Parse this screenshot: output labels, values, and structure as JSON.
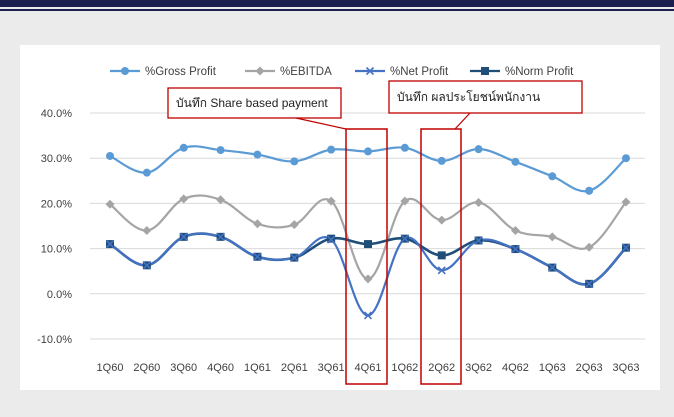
{
  "colors": {
    "top_bar": "#1a1f4e",
    "gross": "#5b9bd5",
    "ebitda": "#a5a5a5",
    "net": "#4472c4",
    "norm": "#1f4e79",
    "callout": "#c00000"
  },
  "callouts": [
    {
      "text": "บันทึก Share based payment"
    },
    {
      "text": "บันทึก ผลประโยชน์พนักงาน"
    }
  ],
  "chart_data": {
    "type": "line",
    "categories": [
      "1Q60",
      "2Q60",
      "3Q60",
      "4Q60",
      "1Q61",
      "2Q61",
      "3Q61",
      "4Q61",
      "1Q62",
      "2Q62",
      "3Q62",
      "4Q62",
      "1Q63",
      "2Q63",
      "3Q63"
    ],
    "ylim": [
      -10,
      40
    ],
    "yticks": [
      "-10.0%",
      "0.0%",
      "10.0%",
      "20.0%",
      "30.0%",
      "40.0%"
    ],
    "grid": true,
    "legend_position": "top",
    "series": [
      {
        "name": "%Gross Profit",
        "marker": "circle",
        "values": [
          30.5,
          26.8,
          32.3,
          31.8,
          30.8,
          29.3,
          31.9,
          31.5,
          32.3,
          29.4,
          32.0,
          29.2,
          26.0,
          22.8,
          30.0
        ]
      },
      {
        "name": "%EBITDA",
        "marker": "diamond",
        "values": [
          19.8,
          14.0,
          21.0,
          20.8,
          15.5,
          15.3,
          20.5,
          3.3,
          20.5,
          16.3,
          20.2,
          14.0,
          12.6,
          10.3,
          20.3
        ]
      },
      {
        "name": "%Net Profit",
        "marker": "x",
        "values": [
          11.0,
          6.3,
          12.6,
          12.6,
          8.2,
          8.0,
          12.0,
          -4.8,
          12.2,
          5.2,
          11.8,
          9.9,
          5.8,
          2.2,
          10.2
        ]
      },
      {
        "name": "%Norm Profit",
        "marker": "square",
        "values": [
          11.0,
          6.3,
          12.6,
          12.6,
          8.2,
          8.0,
          12.2,
          11.0,
          12.2,
          8.5,
          11.8,
          9.9,
          5.8,
          2.2,
          10.2
        ]
      }
    ]
  }
}
